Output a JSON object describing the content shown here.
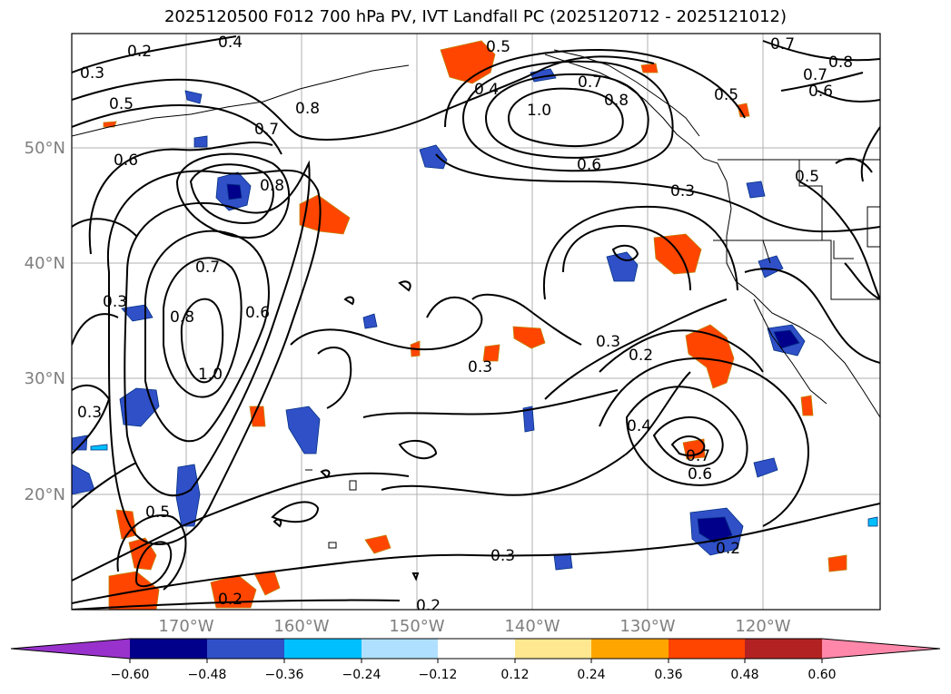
{
  "title": "2025120500 F012 700 hPa PV, IVT Landfall PC (2025120712 - 2025121012)",
  "map": {
    "lat_labels": [
      "50°N",
      "40°N",
      "30°N",
      "20°N"
    ],
    "lon_labels": [
      "170°W",
      "160°W",
      "150°W",
      "140°W",
      "130°W",
      "120°W"
    ],
    "contour_labels": [
      "0.4",
      "0.2",
      "0.3",
      "0.5",
      "0.7",
      "0.8",
      "0.6",
      "0.5",
      "0.4",
      "1.0",
      "0.7",
      "0.8",
      "0.6",
      "0.5",
      "0.7",
      "0.6",
      "0.8",
      "0.7",
      "0.3",
      "0.5",
      "0.8",
      "0.6",
      "0.7",
      "0.8",
      "1.0",
      "0.3",
      "0.3",
      "0.3",
      "0.2",
      "0.4",
      "0.3",
      "0.5",
      "0.7",
      "0.6",
      "0.3",
      "0.2",
      "0.2",
      "0.2"
    ]
  },
  "colorbar": {
    "tick_labels": [
      "−0.60",
      "−0.48",
      "−0.36",
      "−0.24",
      "−0.12",
      "0.12",
      "0.24",
      "0.36",
      "0.48",
      "0.60"
    ],
    "colors": [
      "#9932cc",
      "#00008b",
      "#3050c8",
      "#00bfff",
      "#b0e0ff",
      "#ffffff",
      "#ffe890",
      "#ffa500",
      "#ff4500",
      "#b22222",
      "#ff88aa"
    ]
  }
}
